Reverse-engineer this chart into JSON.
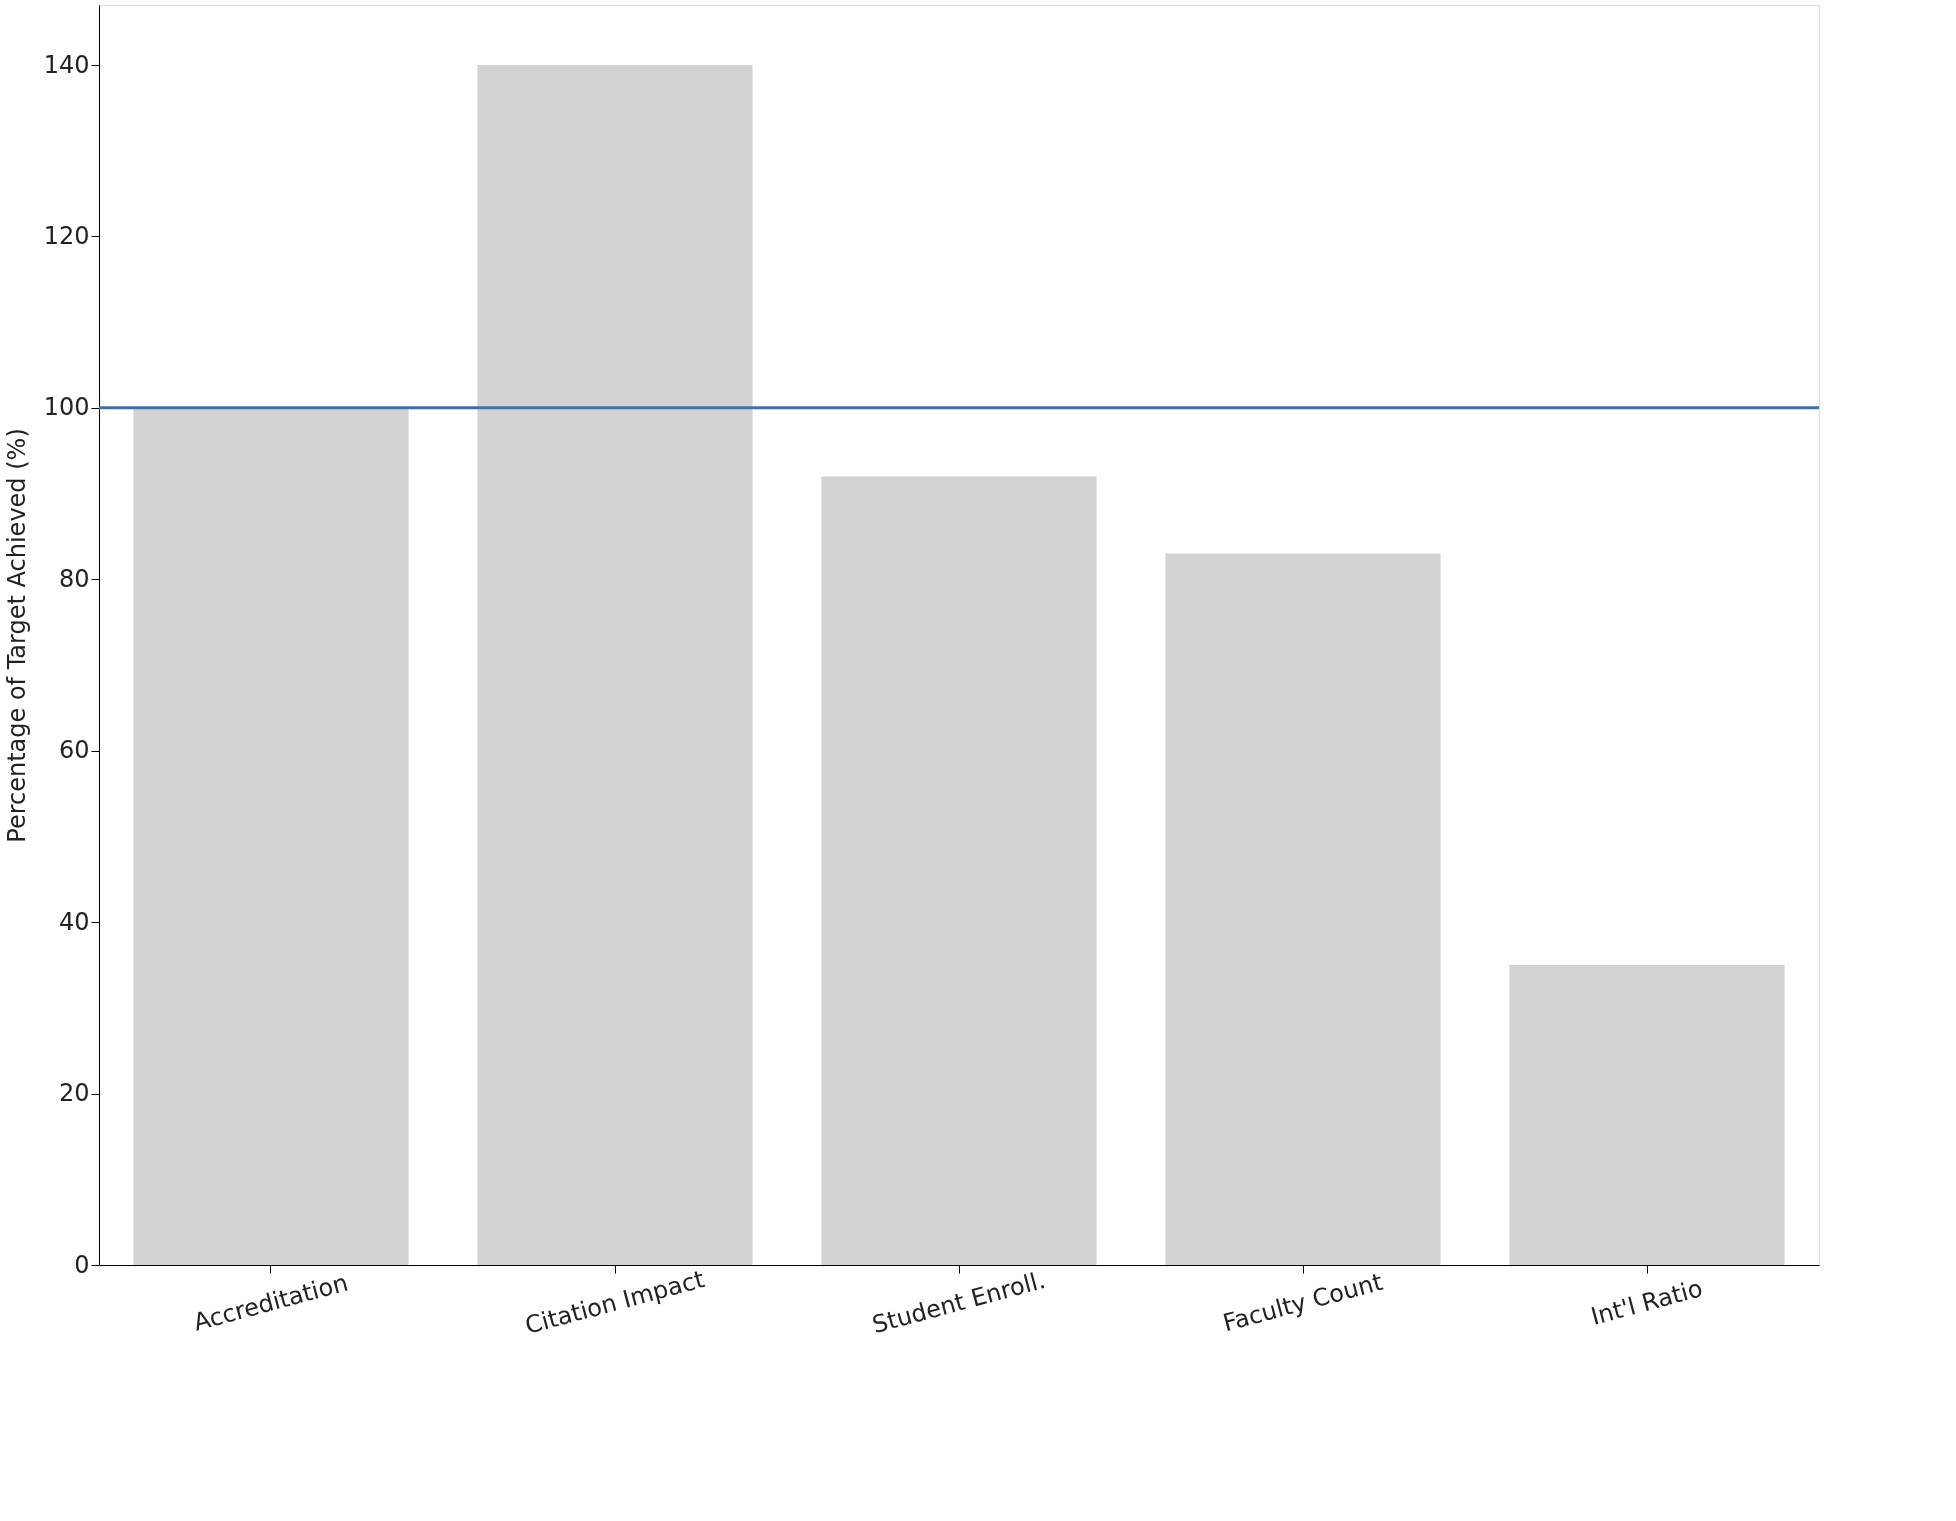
{
  "chart_data": {
    "type": "bar",
    "ylabel": "Percentage of Target Achieved (%)",
    "categories": [
      "Accreditation",
      "Citation Impact",
      "Student Enroll.",
      "Faculty Count",
      "Int'l Ratio"
    ],
    "values": [
      100,
      140,
      92,
      83,
      35
    ],
    "color": "#d3d3d3",
    "ylim": [
      0,
      147
    ],
    "yticks": [
      0,
      20,
      40,
      60,
      80,
      100,
      120,
      140
    ],
    "ref_lines": [
      {
        "axis": "y",
        "value": 100,
        "color": "#3a70b5",
        "line_style": "solid"
      }
    ]
  }
}
